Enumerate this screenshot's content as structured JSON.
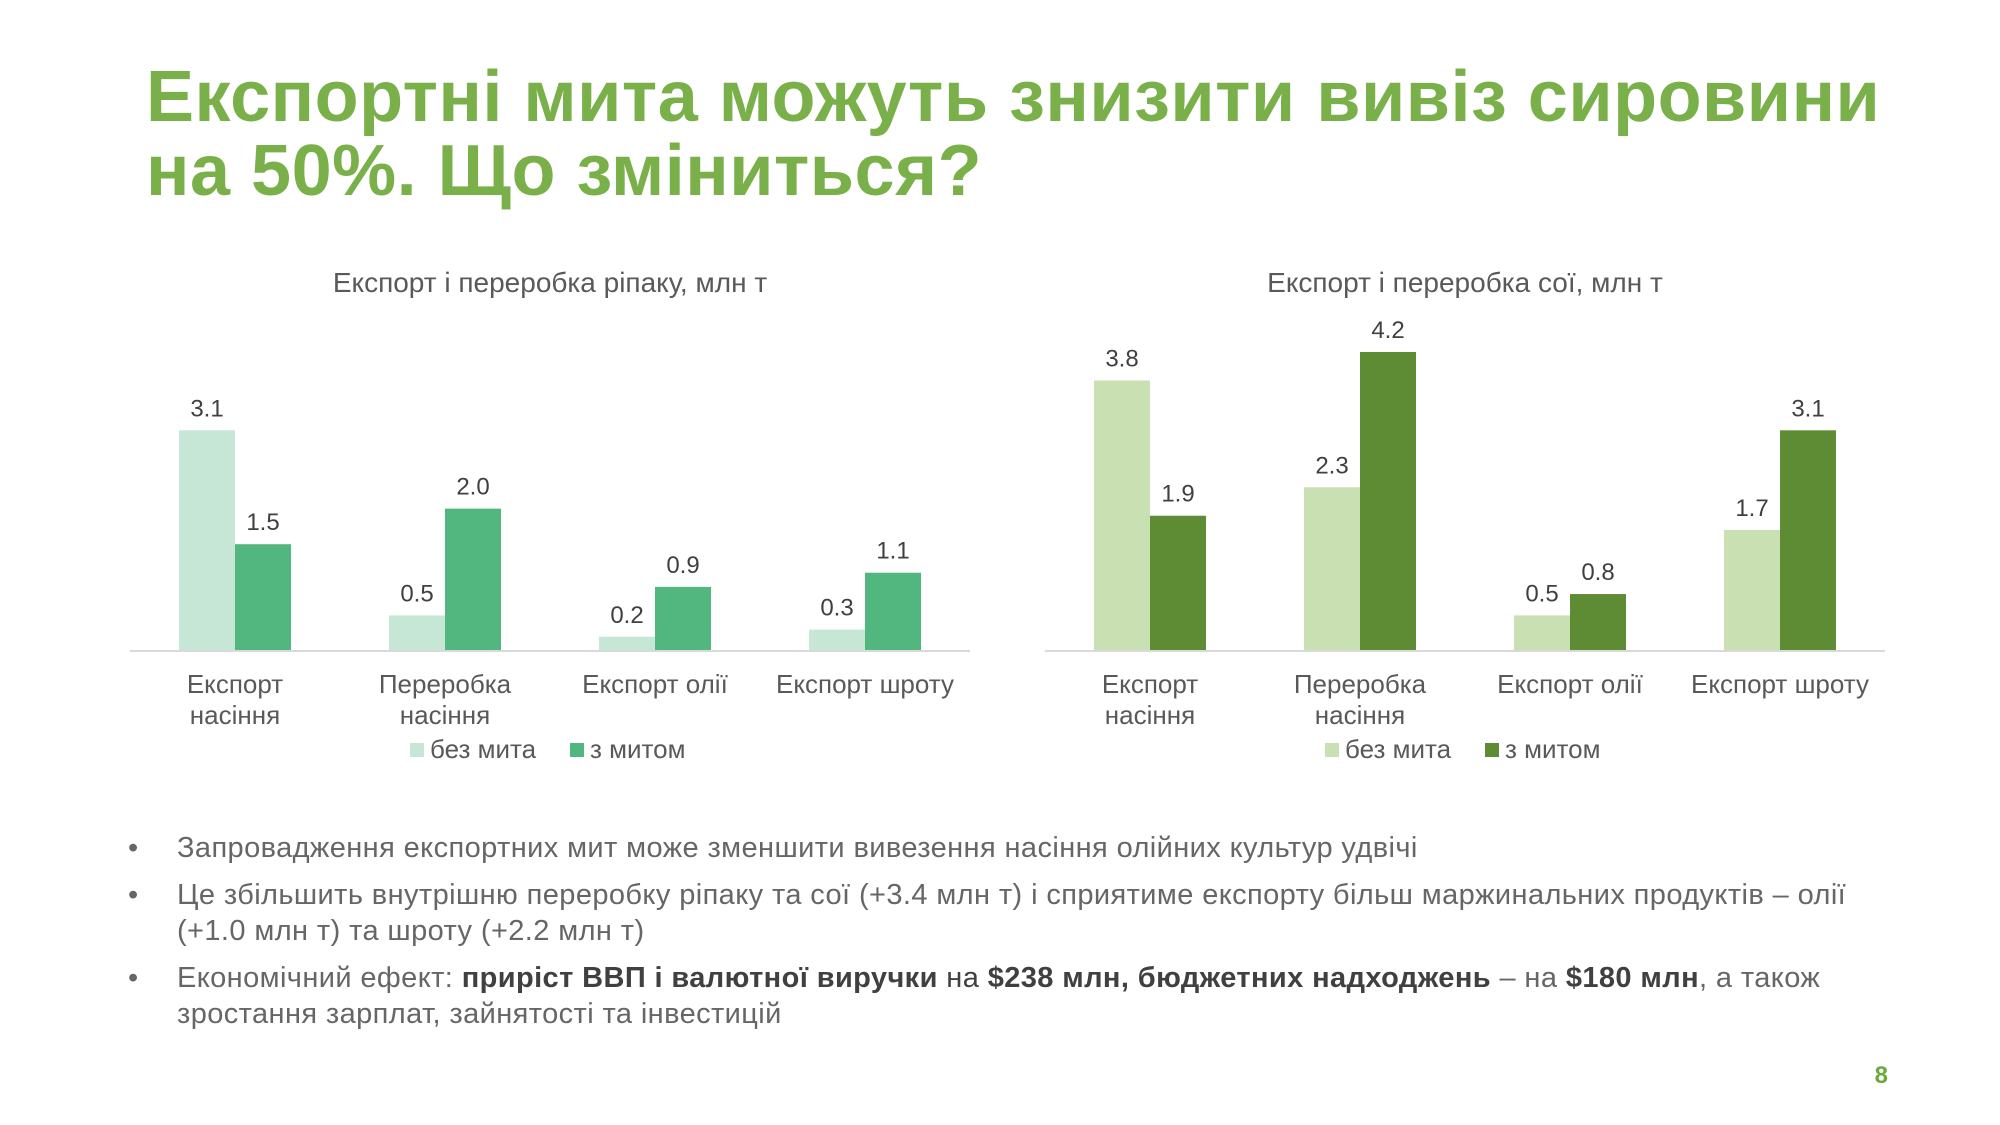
{
  "slide": {
    "title_line1": "Експортні мита можуть знизити вивіз сировини",
    "title_line2": "на 50%. Що зміниться?",
    "page_number": "8"
  },
  "colors": {
    "title": "#7ab04a",
    "rapeseed_no_duty": "#c6e7d6",
    "rapeseed_duty": "#52b77e",
    "soy_no_duty": "#c9e0b2",
    "soy_duty": "#5e8c34",
    "axis": "#d9d9d9",
    "text": "#595959"
  },
  "chart_data": [
    {
      "type": "bar",
      "title": "Експорт і переробка ріпаку, млн т",
      "categories": [
        [
          "Експорт",
          "насіння"
        ],
        [
          "Переробка",
          "насіння"
        ],
        [
          "Експорт олії"
        ],
        [
          "Експорт шроту"
        ]
      ],
      "series": [
        {
          "name": "без мита",
          "values": [
            3.1,
            0.5,
            0.2,
            0.3
          ],
          "labels": [
            "3.1",
            "0.5",
            "0.2",
            "0.3"
          ],
          "color": "#c6e7d6"
        },
        {
          "name": "з митом",
          "values": [
            1.5,
            2.0,
            0.9,
            1.1
          ],
          "labels": [
            "1.5",
            "2.0",
            "0.9",
            "1.1"
          ],
          "color": "#52b77e"
        }
      ],
      "ylim": [
        0,
        4.2
      ],
      "legend": "bottom",
      "grid": false
    },
    {
      "type": "bar",
      "title": "Експорт і переробка сої, млн т",
      "categories": [
        [
          "Експорт",
          "насіння"
        ],
        [
          "Переробка",
          "насіння"
        ],
        [
          "Експорт олії"
        ],
        [
          "Експорт шроту"
        ]
      ],
      "series": [
        {
          "name": "без мита",
          "values": [
            3.8,
            2.3,
            0.5,
            1.7
          ],
          "labels": [
            "3.8",
            "2.3",
            "0.5",
            "1.7"
          ],
          "color": "#c9e0b2"
        },
        {
          "name": "з митом",
          "values": [
            1.9,
            4.2,
            0.8,
            3.1
          ],
          "labels": [
            "1.9",
            "4.2",
            "0.8",
            "3.1"
          ],
          "color": "#5e8c34"
        }
      ],
      "ylim": [
        0,
        4.2
      ],
      "legend": "bottom",
      "grid": false
    }
  ],
  "bullets": {
    "b1": "Запровадження експортних мит може зменшити вивезення насіння олійних культур удвічі",
    "b2": "Це збільшить внутрішню переробку ріпаку та сої (+3.4 млн т) і сприятиме експорту більш маржинальних продуктів – олії (+1.0 млн т) та шроту (+2.2 млн т)",
    "b3_part1": "Економічний ефект: ",
    "b3_bold1": "приріст ВВП і валютної виручки",
    "b3_part2": " на ",
    "b3_bold2": "$238 млн, бюджетних надходжень",
    "b3_part3": " – на ",
    "b3_bold3": "$180 млн",
    "b3_part4": ", а також зростання зарплат, зайнятості та інвестицій"
  }
}
